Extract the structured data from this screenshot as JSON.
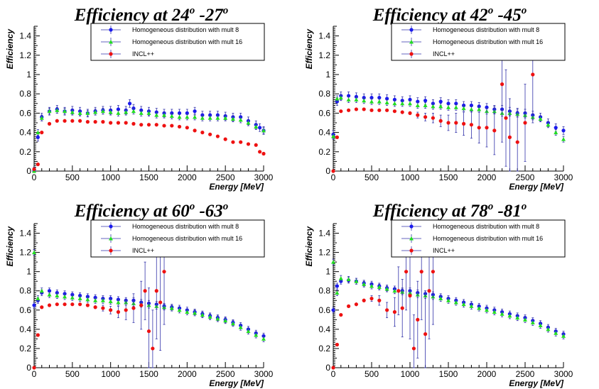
{
  "colors": {
    "mult8": "#1a1aee",
    "mult16": "#22dd22",
    "incl": "#ee1111",
    "errbar": "#3333aa",
    "axis": "#000000"
  },
  "chart_data": [
    {
      "type": "scatter",
      "title": {
        "main": "Efficiency at 24",
        "sup1": "o",
        "mid": " -27",
        "sup2": "o"
      },
      "xlabel": "Energy [MeV]",
      "ylabel": "Efficiency",
      "xlim": [
        0,
        3000
      ],
      "ylim": [
        0,
        1.5
      ],
      "xticks": [
        "0",
        "500",
        "1000",
        "1500",
        "2000",
        "2500",
        "3000"
      ],
      "yticks": [
        "0",
        "0.2",
        "0.4",
        "0.6",
        "0.8",
        "1",
        "1.2",
        "1.4"
      ],
      "legend_position": "top-right",
      "series": [
        {
          "name": "Homogeneous distribution with mult 8",
          "color": "#1a1aee",
          "marker": "circle",
          "x": [
            0,
            50,
            100,
            200,
            300,
            400,
            500,
            600,
            700,
            800,
            900,
            1000,
            1100,
            1200,
            1250,
            1300,
            1400,
            1500,
            1600,
            1700,
            1800,
            1900,
            2000,
            2100,
            2200,
            2300,
            2400,
            2500,
            2600,
            2700,
            2800,
            2900,
            2950,
            3000
          ],
          "y": [
            0.0,
            0.35,
            0.56,
            0.62,
            0.64,
            0.62,
            0.63,
            0.62,
            0.6,
            0.62,
            0.63,
            0.63,
            0.64,
            0.63,
            0.7,
            0.65,
            0.63,
            0.62,
            0.61,
            0.6,
            0.6,
            0.6,
            0.6,
            0.62,
            0.58,
            0.58,
            0.58,
            0.57,
            0.56,
            0.56,
            0.52,
            0.48,
            0.45,
            0.42
          ],
          "err": 0.04
        },
        {
          "name": "Homogeneous distribution with mult 16",
          "color": "#22dd22",
          "marker": "triangle",
          "x": [
            0,
            50,
            100,
            200,
            300,
            400,
            500,
            600,
            700,
            800,
            900,
            1000,
            1100,
            1200,
            1300,
            1400,
            1500,
            1600,
            1700,
            1800,
            1900,
            2000,
            2100,
            2200,
            2300,
            2400,
            2500,
            2600,
            2700,
            2800,
            2900,
            3000
          ],
          "y": [
            0.0,
            0.4,
            0.55,
            0.62,
            0.63,
            0.62,
            0.61,
            0.6,
            0.6,
            0.61,
            0.62,
            0.61,
            0.6,
            0.61,
            0.62,
            0.6,
            0.6,
            0.58,
            0.58,
            0.57,
            0.56,
            0.56,
            0.56,
            0.55,
            0.55,
            0.55,
            0.55,
            0.54,
            0.53,
            0.5,
            0.46,
            0.42
          ],
          "err": 0.03
        },
        {
          "name": "INCL++",
          "color": "#ee1111",
          "marker": "circle",
          "x": [
            0,
            50,
            100,
            200,
            300,
            400,
            500,
            600,
            700,
            800,
            900,
            1000,
            1100,
            1200,
            1300,
            1400,
            1500,
            1600,
            1700,
            1800,
            1900,
            2000,
            2100,
            2200,
            2300,
            2400,
            2500,
            2600,
            2700,
            2800,
            2900,
            2950,
            3000
          ],
          "y": [
            0.02,
            0.07,
            0.4,
            0.49,
            0.52,
            0.52,
            0.52,
            0.52,
            0.51,
            0.51,
            0.51,
            0.5,
            0.5,
            0.5,
            0.49,
            0.48,
            0.48,
            0.48,
            0.47,
            0.47,
            0.46,
            0.45,
            0.42,
            0.4,
            0.38,
            0.36,
            0.33,
            0.3,
            0.3,
            0.28,
            0.27,
            0.2,
            0.18
          ],
          "err": 0.015
        }
      ]
    },
    {
      "type": "scatter",
      "title": {
        "main": "Efficiency at 42",
        "sup1": "o",
        "mid": " -45",
        "sup2": "o"
      },
      "xlabel": "Energy [MeV]",
      "ylabel": "Efficiency",
      "xlim": [
        0,
        3000
      ],
      "ylim": [
        0,
        1.5
      ],
      "xticks": [
        "0",
        "500",
        "1000",
        "1500",
        "2000",
        "2500",
        "3000"
      ],
      "yticks": [
        "0",
        "0.2",
        "0.4",
        "0.6",
        "0.8",
        "1",
        "1.2",
        "1.4"
      ],
      "legend_position": "top-right",
      "series": [
        {
          "name": "Homogeneous distribution with mult 8",
          "color": "#1a1aee",
          "marker": "circle",
          "x": [
            0,
            50,
            100,
            200,
            300,
            400,
            500,
            600,
            700,
            800,
            900,
            1000,
            1100,
            1200,
            1300,
            1400,
            1500,
            1600,
            1700,
            1800,
            1900,
            2000,
            2100,
            2200,
            2300,
            2400,
            2500,
            2600,
            2700,
            2800,
            2900,
            3000
          ],
          "y": [
            0.38,
            0.72,
            0.78,
            0.78,
            0.77,
            0.76,
            0.76,
            0.76,
            0.75,
            0.74,
            0.73,
            0.74,
            0.72,
            0.73,
            0.7,
            0.72,
            0.7,
            0.7,
            0.68,
            0.68,
            0.67,
            0.66,
            0.64,
            0.64,
            0.62,
            0.6,
            0.6,
            0.58,
            0.56,
            0.5,
            0.45,
            0.42
          ],
          "err": 0.04
        },
        {
          "name": "Homogeneous distribution with mult 16",
          "color": "#22dd22",
          "marker": "triangle",
          "x": [
            0,
            50,
            100,
            200,
            300,
            400,
            500,
            600,
            700,
            800,
            900,
            1000,
            1100,
            1200,
            1300,
            1400,
            1500,
            1600,
            1700,
            1800,
            1900,
            2000,
            2100,
            2200,
            2300,
            2400,
            2500,
            2600,
            2700,
            2800,
            2900,
            3000
          ],
          "y": [
            0.36,
            0.75,
            0.76,
            0.74,
            0.74,
            0.73,
            0.72,
            0.72,
            0.71,
            0.7,
            0.7,
            0.7,
            0.68,
            0.68,
            0.67,
            0.67,
            0.66,
            0.66,
            0.65,
            0.64,
            0.64,
            0.62,
            0.62,
            0.6,
            0.6,
            0.59,
            0.58,
            0.56,
            0.54,
            0.48,
            0.4,
            0.33
          ],
          "err": 0.03
        },
        {
          "name": "INCL++",
          "color": "#ee1111",
          "marker": "circle",
          "x": [
            0,
            50,
            100,
            200,
            300,
            400,
            500,
            600,
            700,
            800,
            900,
            1000,
            1100,
            1200,
            1300,
            1400,
            1500,
            1600,
            1700,
            1800,
            1900,
            2000,
            2100,
            2200,
            2250,
            2300,
            2400,
            2500,
            2600
          ],
          "y": [
            0.0,
            0.35,
            0.62,
            0.63,
            0.64,
            0.64,
            0.63,
            0.63,
            0.63,
            0.62,
            0.61,
            0.6,
            0.58,
            0.56,
            0.55,
            0.52,
            0.5,
            0.5,
            0.49,
            0.48,
            0.45,
            0.45,
            0.42,
            0.9,
            0.55,
            0.35,
            0.3,
            0.5,
            1.0
          ],
          "err": [
            0.01,
            0.01,
            0.01,
            0.01,
            0.01,
            0.01,
            0.01,
            0.01,
            0.01,
            0.01,
            0.02,
            0.02,
            0.03,
            0.04,
            0.05,
            0.06,
            0.08,
            0.1,
            0.12,
            0.14,
            0.16,
            0.2,
            0.25,
            0.6,
            0.5,
            0.4,
            0.35,
            0.4,
            0.5
          ]
        }
      ]
    },
    {
      "type": "scatter",
      "title": {
        "main": "Efficiency at 60",
        "sup1": "o",
        "mid": " -63",
        "sup2": "o"
      },
      "xlabel": "Energy [MeV]",
      "ylabel": "Efficiency",
      "xlim": [
        0,
        3000
      ],
      "ylim": [
        0,
        1.5
      ],
      "xticks": [
        "0",
        "500",
        "1000",
        "1500",
        "2000",
        "2500",
        "3000"
      ],
      "yticks": [
        "0",
        "0.2",
        "0.4",
        "0.6",
        "0.8",
        "1",
        "1.2",
        "1.4"
      ],
      "legend_position": "top-right",
      "series": [
        {
          "name": "Homogeneous distribution with mult 8",
          "color": "#1a1aee",
          "marker": "circle",
          "x": [
            0,
            50,
            100,
            200,
            300,
            400,
            500,
            600,
            700,
            800,
            900,
            1000,
            1100,
            1200,
            1300,
            1400,
            1500,
            1600,
            1700,
            1800,
            1900,
            2000,
            2100,
            2200,
            2300,
            2400,
            2500,
            2600,
            2700,
            2800,
            2900,
            3000
          ],
          "y": [
            0.65,
            0.7,
            0.78,
            0.8,
            0.78,
            0.77,
            0.76,
            0.75,
            0.74,
            0.73,
            0.72,
            0.72,
            0.71,
            0.7,
            0.7,
            0.68,
            0.67,
            0.66,
            0.64,
            0.63,
            0.62,
            0.6,
            0.58,
            0.56,
            0.54,
            0.52,
            0.5,
            0.47,
            0.44,
            0.4,
            0.36,
            0.33
          ],
          "err": 0.03
        },
        {
          "name": "Homogeneous distribution with mult 16",
          "color": "#22dd22",
          "marker": "triangle",
          "x": [
            0,
            50,
            100,
            200,
            300,
            400,
            500,
            600,
            700,
            800,
            900,
            1000,
            1100,
            1200,
            1300,
            1400,
            1500,
            1600,
            1700,
            1800,
            1900,
            2000,
            2100,
            2200,
            2300,
            2400,
            2500,
            2600,
            2700,
            2800,
            2900,
            3000
          ],
          "y": [
            1.2,
            0.72,
            0.8,
            0.76,
            0.75,
            0.74,
            0.73,
            0.72,
            0.71,
            0.7,
            0.7,
            0.69,
            0.68,
            0.68,
            0.67,
            0.66,
            0.65,
            0.64,
            0.63,
            0.62,
            0.6,
            0.58,
            0.57,
            0.55,
            0.53,
            0.51,
            0.49,
            0.46,
            0.42,
            0.38,
            0.34,
            0.3
          ],
          "err": 0.03
        },
        {
          "name": "INCL++",
          "color": "#ee1111",
          "marker": "circle",
          "x": [
            0,
            50,
            100,
            200,
            300,
            400,
            500,
            600,
            700,
            800,
            900,
            1000,
            1100,
            1200,
            1300,
            1400,
            1450,
            1500,
            1550,
            1600,
            1650,
            1700
          ],
          "y": [
            0.0,
            0.34,
            0.63,
            0.65,
            0.66,
            0.66,
            0.66,
            0.66,
            0.65,
            0.63,
            0.62,
            0.6,
            0.58,
            0.6,
            0.62,
            0.65,
            0.8,
            0.38,
            0.2,
            0.8,
            0.68,
            1.0
          ],
          "err": [
            0.01,
            0.01,
            0.01,
            0.01,
            0.01,
            0.01,
            0.01,
            0.01,
            0.01,
            0.02,
            0.03,
            0.04,
            0.06,
            0.1,
            0.15,
            0.25,
            0.3,
            0.45,
            0.4,
            0.5,
            0.5,
            0.55
          ]
        }
      ]
    },
    {
      "type": "scatter",
      "title": {
        "main": "Efficiency at 78",
        "sup1": "o",
        "mid": " -81",
        "sup2": "o"
      },
      "xlabel": "Energy [MeV]",
      "ylabel": "Efficiency",
      "xlim": [
        0,
        3000
      ],
      "ylim": [
        0,
        1.5
      ],
      "xticks": [
        "0",
        "500",
        "1000",
        "1500",
        "2000",
        "2500",
        "3000"
      ],
      "yticks": [
        "0",
        "0.2",
        "0.4",
        "0.6",
        "0.8",
        "1",
        "1.2",
        "1.4"
      ],
      "legend_position": "top-right",
      "series": [
        {
          "name": "Homogeneous distribution with mult 8",
          "color": "#1a1aee",
          "marker": "circle",
          "x": [
            0,
            50,
            100,
            200,
            300,
            400,
            500,
            600,
            700,
            800,
            900,
            1000,
            1100,
            1200,
            1300,
            1400,
            1500,
            1600,
            1700,
            1800,
            1900,
            2000,
            2100,
            2200,
            2300,
            2400,
            2500,
            2600,
            2700,
            2800,
            2900,
            3000
          ],
          "y": [
            0.6,
            0.85,
            0.9,
            0.91,
            0.9,
            0.88,
            0.87,
            0.85,
            0.83,
            0.82,
            0.8,
            0.8,
            0.78,
            0.77,
            0.76,
            0.74,
            0.72,
            0.7,
            0.68,
            0.66,
            0.64,
            0.62,
            0.6,
            0.58,
            0.56,
            0.54,
            0.52,
            0.49,
            0.46,
            0.42,
            0.38,
            0.35
          ],
          "err": 0.03
        },
        {
          "name": "Homogeneous distribution with mult 16",
          "color": "#22dd22",
          "marker": "triangle",
          "x": [
            0,
            50,
            100,
            200,
            300,
            400,
            500,
            600,
            700,
            800,
            900,
            1000,
            1100,
            1200,
            1300,
            1400,
            1500,
            1600,
            1700,
            1800,
            1900,
            2000,
            2100,
            2200,
            2300,
            2400,
            2500,
            2600,
            2700,
            2800,
            2900,
            3000
          ],
          "y": [
            1.1,
            0.78,
            0.93,
            0.92,
            0.9,
            0.87,
            0.85,
            0.84,
            0.82,
            0.8,
            0.79,
            0.78,
            0.76,
            0.75,
            0.74,
            0.72,
            0.7,
            0.68,
            0.66,
            0.64,
            0.62,
            0.6,
            0.58,
            0.56,
            0.54,
            0.52,
            0.5,
            0.47,
            0.44,
            0.4,
            0.36,
            0.33
          ],
          "err": 0.03
        },
        {
          "name": "INCL++",
          "color": "#ee1111",
          "marker": "circle",
          "x": [
            0,
            50,
            100,
            200,
            300,
            400,
            500,
            600,
            700,
            800,
            850,
            900,
            950,
            1000,
            1050,
            1100,
            1150,
            1200,
            1250,
            1300
          ],
          "y": [
            0.0,
            0.24,
            0.55,
            0.64,
            0.66,
            0.7,
            0.72,
            0.7,
            0.6,
            0.58,
            0.8,
            0.62,
            1.0,
            0.75,
            0.2,
            0.5,
            1.0,
            0.35,
            0.8,
            1.0
          ],
          "err": [
            0.01,
            0.01,
            0.01,
            0.01,
            0.02,
            0.02,
            0.03,
            0.05,
            0.08,
            0.15,
            0.25,
            0.3,
            0.4,
            0.45,
            0.35,
            0.4,
            0.5,
            0.45,
            0.5,
            0.55
          ]
        }
      ]
    }
  ]
}
